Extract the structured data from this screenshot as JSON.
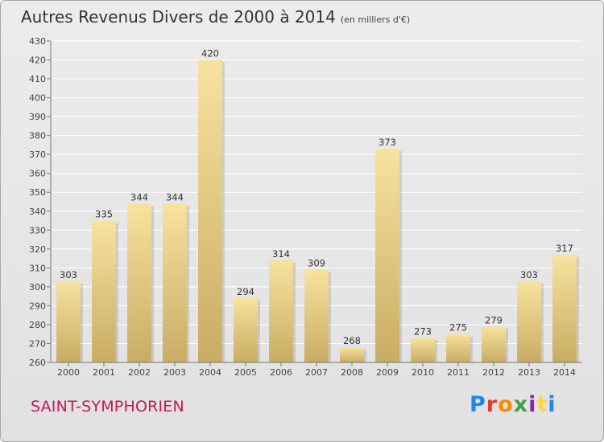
{
  "header": {
    "title": "Autres Revenus Divers de 2000 à 2014",
    "subtitle": "(en milliers d'€)"
  },
  "footer": {
    "commune": "SAINT-SYMPHORIEN",
    "logo_text": "Proxiti",
    "logo_colors": [
      "#1e88e5",
      "#e53935",
      "#fb8c00",
      "#43a047",
      "#8e24aa",
      "#fdd835",
      "#1e88e5"
    ]
  },
  "colors": {
    "bar_light": "#f7e29f",
    "bar_dark": "#c9ac63",
    "grid": "#ffffff",
    "axis_text": "#444444",
    "commune": "#c2185b"
  },
  "chart_data": {
    "type": "bar",
    "title": "Autres Revenus Divers de 2000 à 2014",
    "subtitle": "(en milliers d'€)",
    "xlabel": "",
    "ylabel": "",
    "categories": [
      "2000",
      "2001",
      "2002",
      "2003",
      "2004",
      "2005",
      "2006",
      "2007",
      "2008",
      "2009",
      "2010",
      "2011",
      "2012",
      "2013",
      "2014"
    ],
    "values": [
      303,
      335,
      344,
      344,
      420,
      294,
      314,
      309,
      268,
      373,
      273,
      275,
      279,
      303,
      317
    ],
    "ylim": [
      260,
      430
    ],
    "yticks": [
      260,
      270,
      280,
      290,
      300,
      310,
      320,
      330,
      340,
      350,
      360,
      370,
      380,
      390,
      400,
      410,
      420,
      430
    ],
    "grid": true,
    "legend": "none"
  }
}
